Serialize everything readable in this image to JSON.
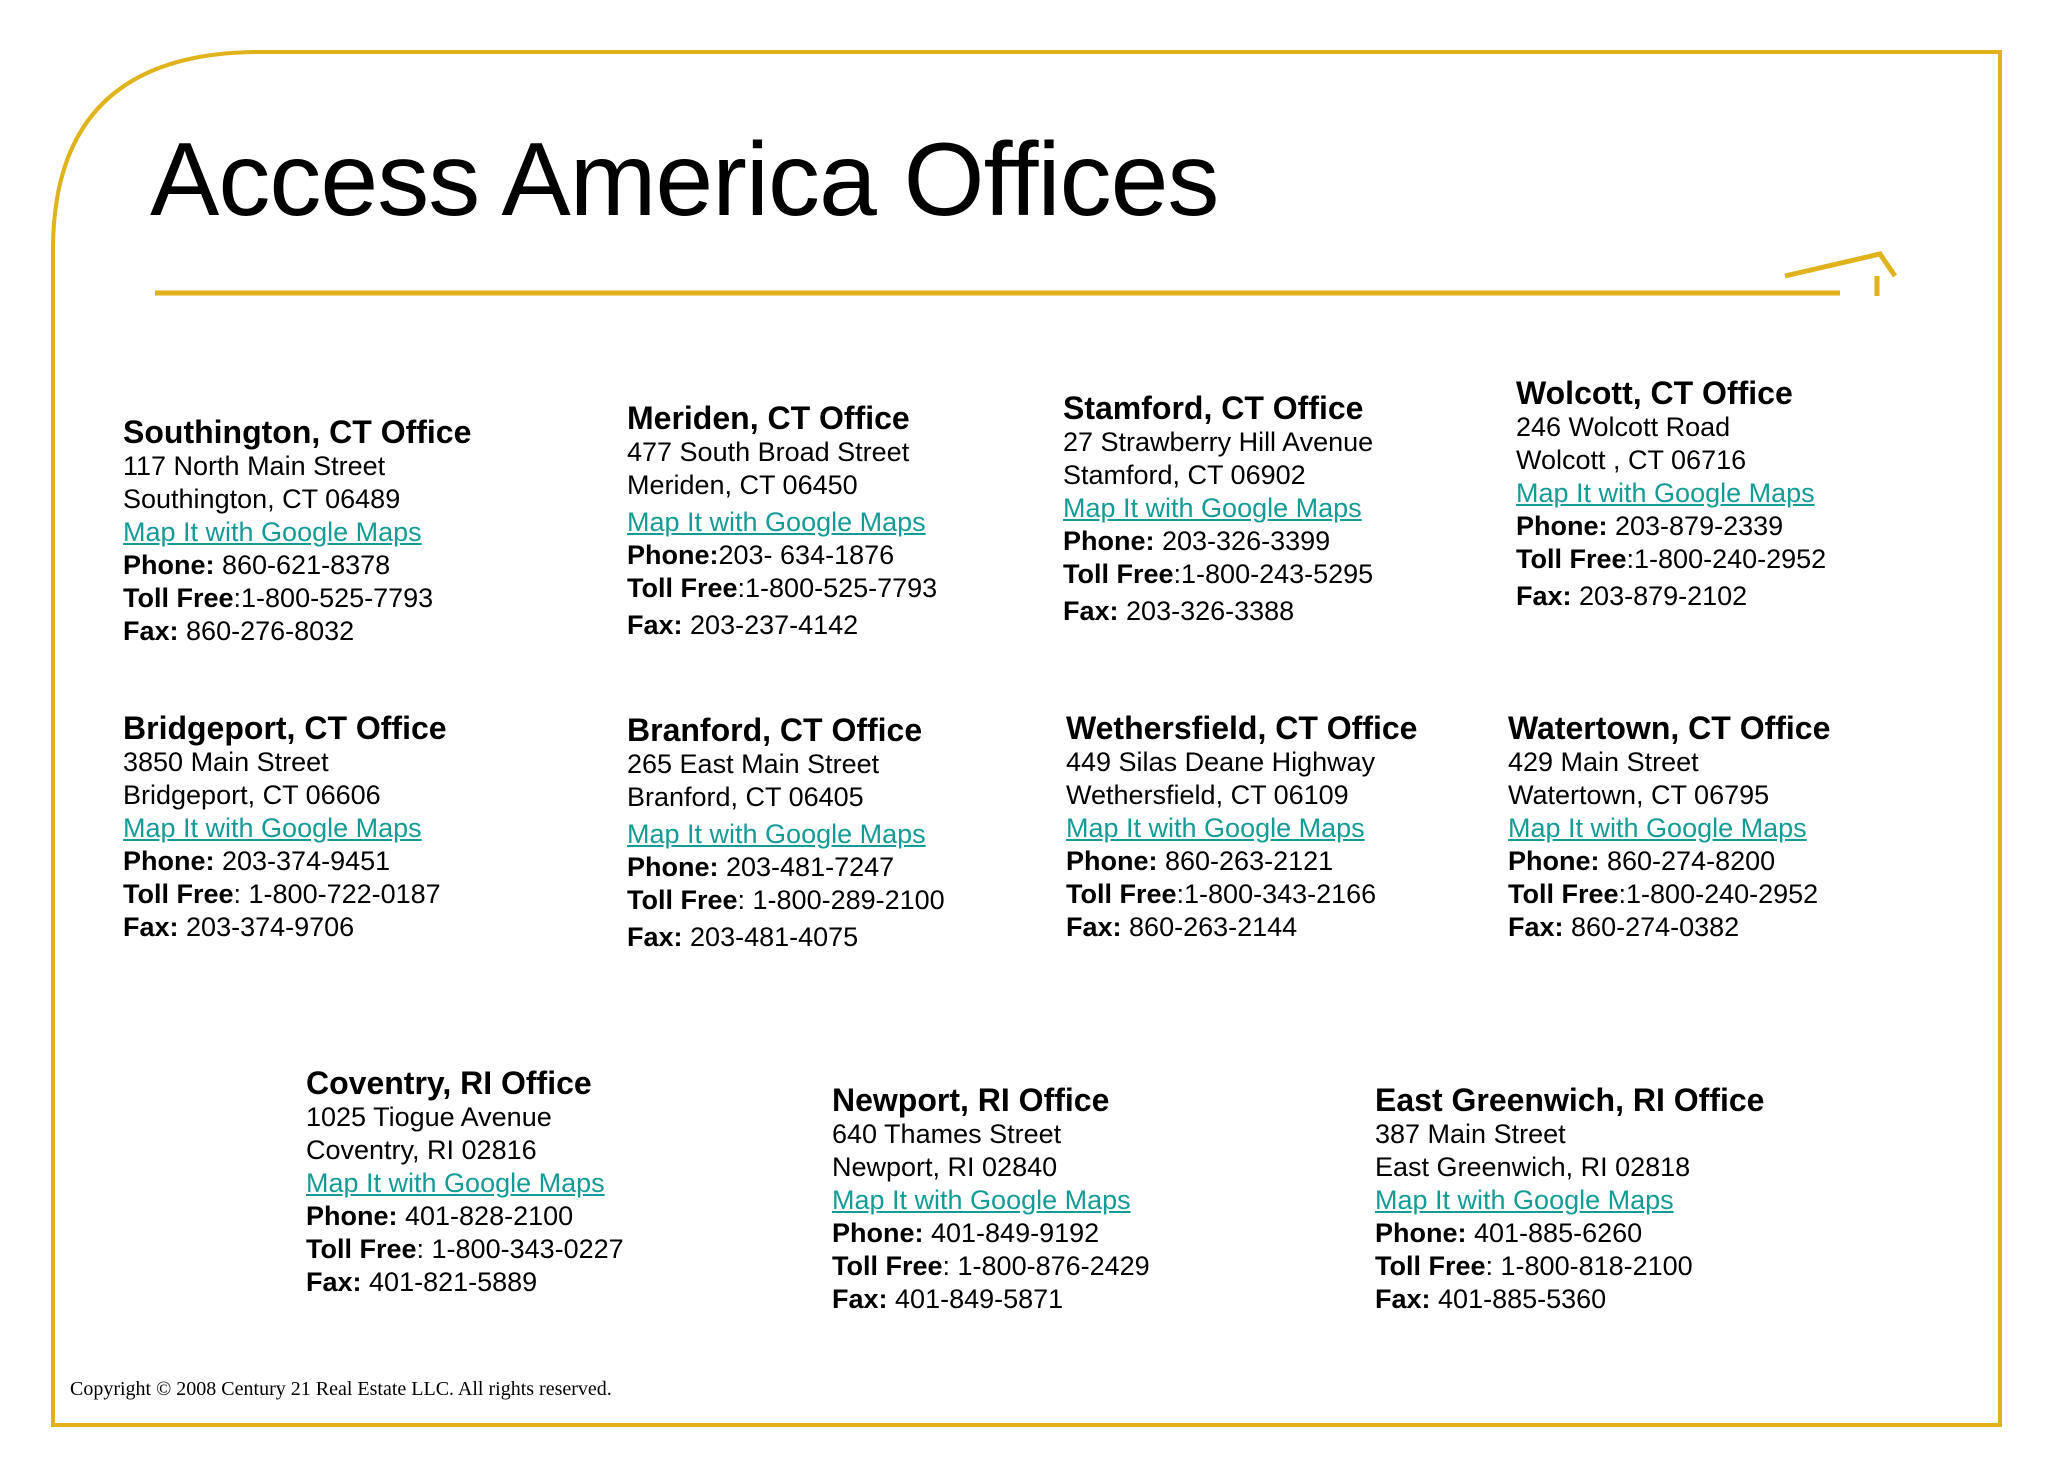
{
  "page": {
    "title": "Access America Offices",
    "accent_color": "#e0b21c",
    "link_color": "#149b95",
    "copyright": "Copyright © 2008 Century 21 Real Estate LLC. All rights reserved."
  },
  "offices": [
    {
      "name": "Southington, CT Office",
      "street": "117 North Main Street",
      "city": "Southington, CT  06489",
      "map_link": "Map It with Google Maps",
      "phone_label": "Phone:",
      "phone": " 860-621-8378",
      "toll_label": "Toll Free",
      "toll": ":1-800-525-7793",
      "fax_label": "Fax:",
      "fax": " 860-276-8032"
    },
    {
      "name": "Meriden, CT Office",
      "street": "477 South Broad Street",
      "city": "Meriden, CT  06450",
      "map_link": "Map It with Google Maps ",
      "phone_label": "Phone:",
      "phone": "203- 634-1876",
      "toll_label": "Toll Free",
      "toll": ":1-800-525-7793",
      "fax_label": "Fax:",
      "fax": " 203-237-4142"
    },
    {
      "name": "Stamford, CT Office",
      "street": "27 Strawberry Hill Avenue",
      "city": "Stamford, CT  06902",
      "map_link": "Map It with Google Maps",
      "phone_label": "Phone:",
      "phone": " 203-326-3399",
      "toll_label": "Toll Free",
      "toll": ":1-800-243-5295",
      "fax_label": "Fax:",
      "fax": " 203-326-3388"
    },
    {
      "name": "Wolcott, CT Office",
      "street": "246 Wolcott Road",
      "city": "Wolcott , CT  06716",
      "map_link": "Map It with Google Maps",
      "phone_label": "Phone:",
      "phone": " 203-879-2339",
      "toll_label": "Toll Free",
      "toll": ":1-800-240-2952",
      "fax_label": "Fax:",
      "fax": " 203-879-2102"
    },
    {
      "name": "Bridgeport, CT Office",
      "street": "3850 Main Street",
      "city": "Bridgeport, CT  06606",
      "map_link": "Map It with Google Maps",
      "phone_label": "Phone:",
      "phone": " 203-374-9451",
      "toll_label": "Toll Free",
      "toll": ": 1-800-722-0187",
      "fax_label": "Fax:",
      "fax": " 203-374-9706"
    },
    {
      "name": "Branford, CT Office",
      "street": "265 East Main Street",
      "city": "Branford, CT  06405",
      "map_link": "Map It with Google Maps",
      "phone_label": "Phone:",
      "phone": " 203-481-7247",
      "toll_label": "Toll Free",
      "toll": ": 1-800-289-2100",
      "fax_label": "Fax:",
      "fax": " 203-481-4075"
    },
    {
      "name": "Wethersfield, CT Office",
      "street": "449 Silas Deane Highway",
      "city": "Wethersfield, CT  06109",
      "map_link": "Map It with Google Maps",
      "phone_label": "Phone:",
      "phone": " 860-263-2121",
      "toll_label": "Toll Free",
      "toll": ":1-800-343-2166",
      "fax_label": "Fax:",
      "fax": " 860-263-2144"
    },
    {
      "name": "Watertown, CT Office",
      "street": "429 Main Street",
      "city": "Watertown, CT  06795",
      "map_link": "Map It with Google Maps",
      "phone_label": "Phone:",
      "phone": " 860-274-8200",
      "toll_label": "Toll Free",
      "toll": ":1-800-240-2952",
      "fax_label": "Fax:",
      "fax": " 860-274-0382"
    },
    {
      "name": "Coventry, RI Office",
      "street": "1025 Tiogue Avenue",
      "city": "Coventry, RI  02816",
      "map_link": "Map It with Google Maps ",
      "phone_label": "Phone:",
      "phone": " 401-828-2100",
      "toll_label": "Toll Free",
      "toll": ": 1-800-343-0227",
      "fax_label": "Fax:",
      "fax": " 401-821-5889"
    },
    {
      "name": "Newport, RI Office",
      "street": "640 Thames Street",
      "city": "Newport, RI  02840",
      "map_link": "Map It with Google Maps ",
      "phone_label": "Phone:",
      "phone": " 401-849-9192",
      "toll_label": "Toll Free",
      "toll": ": 1-800-876-2429",
      "fax_label": "Fax:",
      "fax": " 401-849-5871"
    },
    {
      "name": "East Greenwich, RI Office",
      "street": "387 Main Street",
      "city": "East Greenwich, RI  02818",
      "map_link": "Map It with Google Maps",
      "phone_label": "Phone:",
      "phone": " 401-885-6260",
      "toll_label": "Toll Free",
      "toll": ": 1-800-818-2100",
      "fax_label": "Fax:",
      "fax": " 401-885-5360"
    }
  ]
}
